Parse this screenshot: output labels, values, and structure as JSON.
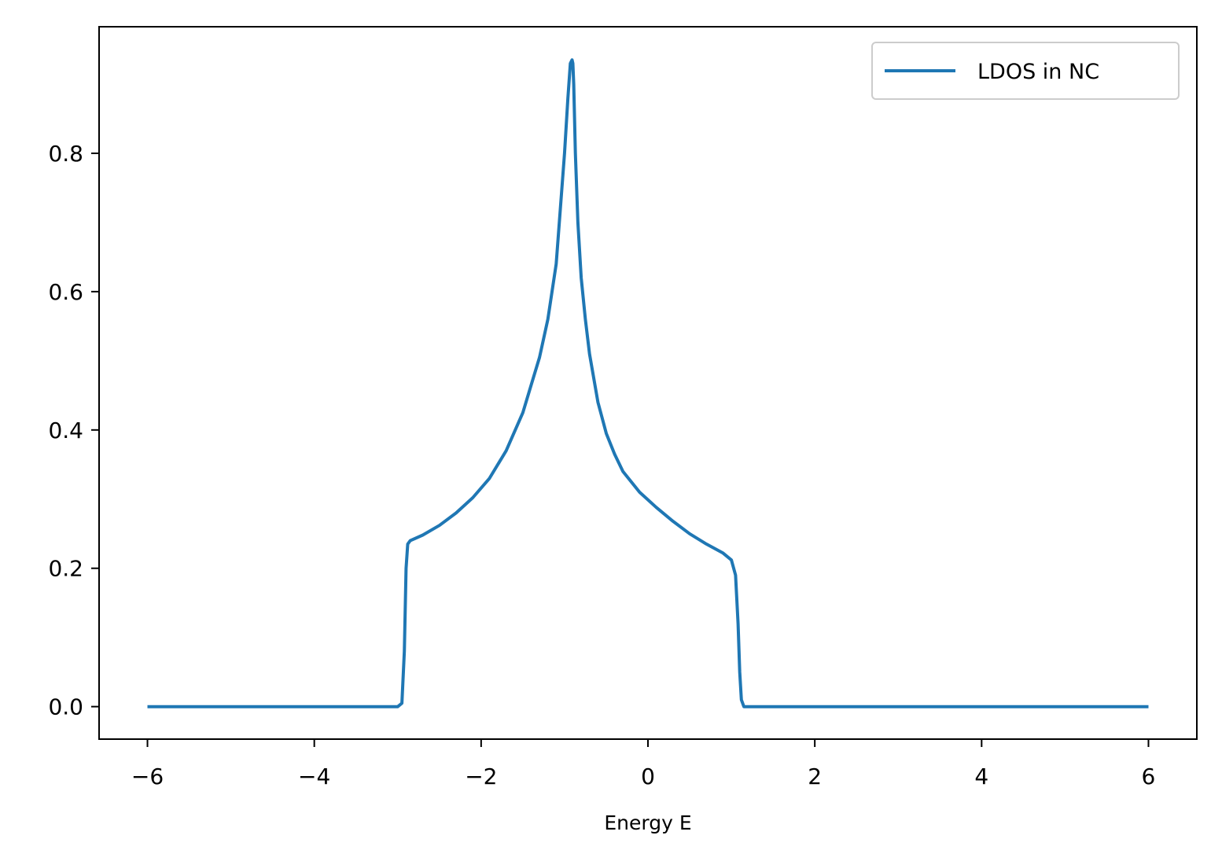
{
  "chart_data": {
    "type": "line",
    "title": "",
    "xlabel": "Energy E",
    "ylabel": "",
    "xlim": [
      -6.58,
      6.58
    ],
    "ylim": [
      -0.047,
      0.983
    ],
    "xticks": [
      -6,
      -4,
      -2,
      0,
      2,
      4,
      6
    ],
    "xtick_labels": [
      "−6",
      "−4",
      "−2",
      "0",
      "2",
      "4",
      "6"
    ],
    "yticks": [
      0.0,
      0.2,
      0.4,
      0.6,
      0.8
    ],
    "ytick_labels": [
      "0.0",
      "0.2",
      "0.4",
      "0.6",
      "0.8"
    ],
    "grid": false,
    "legend_position": "upper right",
    "colors": {
      "series": "#1f77b4",
      "axes": "#000000",
      "legend_border": "#cccccc"
    },
    "series": [
      {
        "name": "LDOS in NC",
        "x": [
          -6.0,
          -3.0,
          -2.95,
          -2.92,
          -2.9,
          -2.88,
          -2.85,
          -2.7,
          -2.5,
          -2.3,
          -2.1,
          -1.9,
          -1.7,
          -1.5,
          -1.4,
          -1.3,
          -1.2,
          -1.1,
          -1.05,
          -1.0,
          -0.96,
          -0.93,
          -0.91,
          -0.9,
          -0.89,
          -0.87,
          -0.84,
          -0.8,
          -0.75,
          -0.7,
          -0.6,
          -0.5,
          -0.4,
          -0.3,
          -0.1,
          0.1,
          0.3,
          0.5,
          0.7,
          0.9,
          1.0,
          1.05,
          1.08,
          1.1,
          1.12,
          1.15,
          1.2,
          6.0
        ],
        "y": [
          0.0,
          0.0,
          0.005,
          0.08,
          0.2,
          0.235,
          0.24,
          0.248,
          0.262,
          0.28,
          0.302,
          0.33,
          0.37,
          0.425,
          0.465,
          0.505,
          0.56,
          0.64,
          0.72,
          0.8,
          0.88,
          0.93,
          0.935,
          0.93,
          0.9,
          0.8,
          0.7,
          0.62,
          0.56,
          0.51,
          0.44,
          0.395,
          0.365,
          0.34,
          0.31,
          0.288,
          0.268,
          0.25,
          0.235,
          0.222,
          0.212,
          0.19,
          0.12,
          0.05,
          0.01,
          0.0,
          0.0,
          0.0
        ]
      }
    ]
  }
}
